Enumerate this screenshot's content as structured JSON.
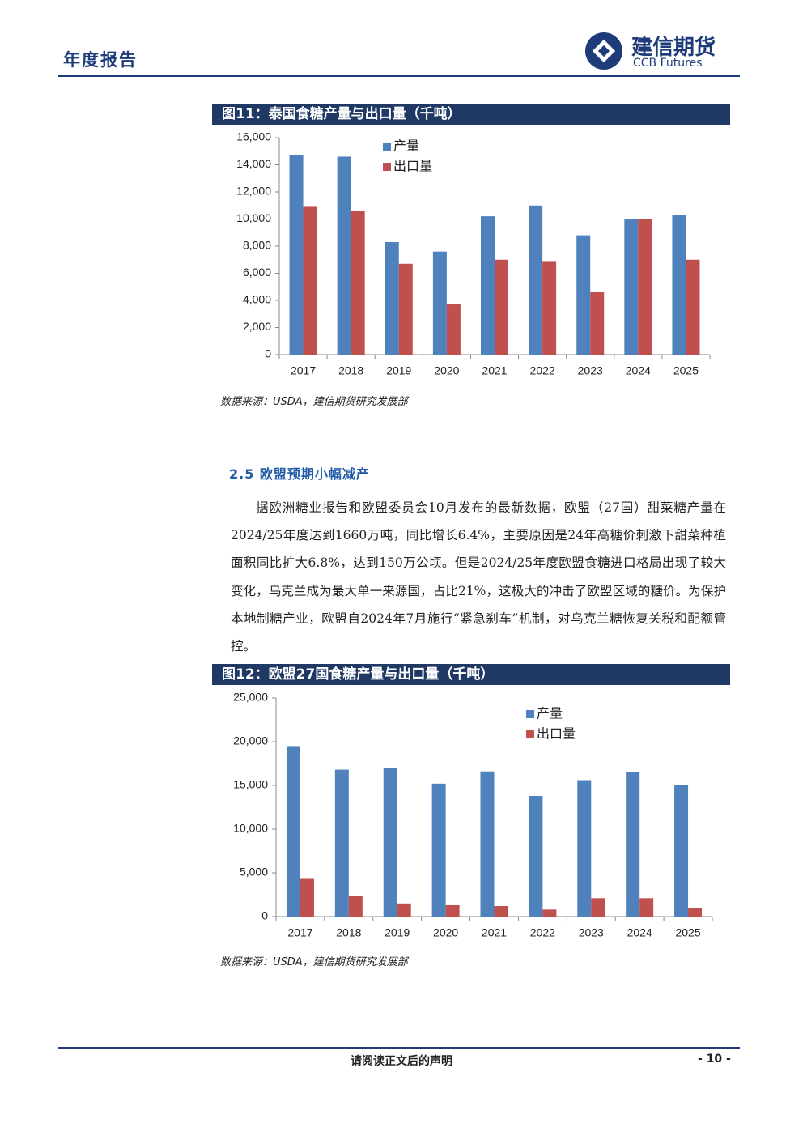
{
  "header": {
    "title": "年度报告",
    "logo_cn": "建信期货",
    "logo_en": "CCB Futures"
  },
  "chart_data": [
    {
      "type": "bar",
      "title": "图11：泰国食糖产量与出口量（千吨）",
      "categories": [
        "2017",
        "2018",
        "2019",
        "2020",
        "2021",
        "2022",
        "2023",
        "2024",
        "2025"
      ],
      "series": [
        {
          "name": "产量",
          "color": "#4f81bd",
          "values": [
            14700,
            14600,
            8300,
            7600,
            10200,
            11000,
            8800,
            10000,
            10300
          ]
        },
        {
          "name": "出口量",
          "color": "#c0504d",
          "values": [
            10900,
            10600,
            6700,
            3700,
            7000,
            6900,
            4600,
            10000,
            7000
          ]
        }
      ],
      "ylim": [
        0,
        16000
      ],
      "yticks": [
        0,
        {
          "value": 2000,
          "label": "2,000"
        },
        {
          "value": 4000,
          "label": "4,000"
        },
        {
          "value": 6000,
          "label": "6,000"
        },
        {
          "value": 8000,
          "label": "8,000"
        },
        {
          "value": 10000,
          "label": "10,000"
        },
        {
          "value": 12000,
          "label": "12,000"
        },
        {
          "value": 14000,
          "label": "14,000"
        },
        {
          "value": 16000,
          "label": "16,000"
        }
      ],
      "grid": false,
      "legend": "top",
      "source": "数据来源：USDA，建信期货研究发展部"
    },
    {
      "type": "bar",
      "title": "图12：欧盟27国食糖产量与出口量（千吨）",
      "categories": [
        "2017",
        "2018",
        "2019",
        "2020",
        "2021",
        "2022",
        "2023",
        "2024",
        "2025"
      ],
      "series": [
        {
          "name": "产量",
          "color": "#4f81bd",
          "values": [
            19500,
            16800,
            17000,
            15200,
            16600,
            13800,
            15600,
            16500,
            15000
          ]
        },
        {
          "name": "出口量",
          "color": "#c0504d",
          "values": [
            4400,
            2400,
            1500,
            1300,
            1200,
            800,
            2100,
            2100,
            1000
          ]
        }
      ],
      "ylim": [
        0,
        25000
      ],
      "yticks": [
        0,
        {
          "value": 5000,
          "label": "5,000"
        },
        {
          "value": 10000,
          "label": "10,000"
        },
        {
          "value": 15000,
          "label": "15,000"
        },
        {
          "value": 20000,
          "label": "20,000"
        },
        {
          "value": 25000,
          "label": "25,000"
        }
      ],
      "grid": false,
      "legend": "top-right",
      "source": "数据来源：USDA，建信期货研究发展部"
    }
  ],
  "section": {
    "heading": "2.5 欧盟预期小幅减产",
    "paragraph": "据欧洲糖业报告和欧盟委员会10月发布的最新数据，欧盟（27国）甜菜糖产量在2024/25年度达到1660万吨，同比增长6.4%，主要原因是24年高糖价刺激下甜菜种植面积同比扩大6.8%，达到150万公顷。但是2024/25年度欧盟食糖进口格局出现了较大变化，乌克兰成为最大单一来源国，占比21%，这极大的冲击了欧盟区域的糖价。为保护本地制糖产业，欧盟自2024年7月施行“紧急刹车”机制，对乌克兰糖恢复关税和配额管控。"
  },
  "footer": {
    "note": "请阅读正文后的声明",
    "page": "- 10 -"
  }
}
